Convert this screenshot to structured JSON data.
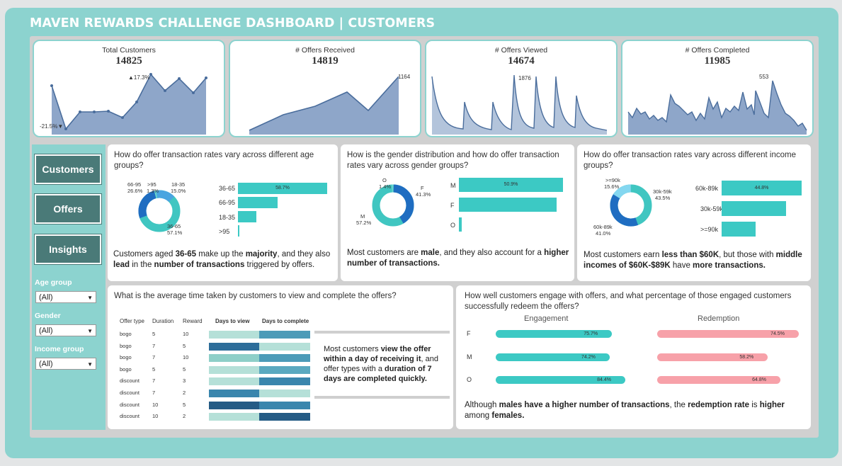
{
  "title": "MAVEN REWARDS CHALLENGE DASHBOARD | CUSTOMERS",
  "kpis": [
    {
      "title": "Total Customers",
      "value": "14825",
      "high_label": "▲17.3%",
      "low_label": "-21.5%▼"
    },
    {
      "title": "# Offers Received",
      "value": "14819",
      "peak_label": "1164"
    },
    {
      "title": "# Offers Viewed",
      "value": "14674",
      "peak_label": "1876"
    },
    {
      "title": "# Offers Completed",
      "value": "11985",
      "peak_label": "553"
    }
  ],
  "nav": {
    "customers": "Customers",
    "offers": "Offers",
    "insights": "Insights"
  },
  "filters": [
    {
      "label": "Age group",
      "value": "(All)"
    },
    {
      "label": "Gender",
      "value": "(All)"
    },
    {
      "label": "Income group",
      "value": "(All)"
    }
  ],
  "age": {
    "question": "How do offer transaction rates vary across different age groups?",
    "donut_labels": [
      {
        "name": "66-95",
        "pct": "26.6%"
      },
      {
        "name": ">95",
        "pct": "1.3%"
      },
      {
        "name": "18-35",
        "pct": "15.0%"
      },
      {
        "name": "36-65",
        "pct": "57.1%"
      }
    ],
    "bars": [
      {
        "label": "36-65",
        "value": 58.7,
        "text": "58.7%"
      },
      {
        "label": "66-95",
        "value": 26,
        "text": ""
      },
      {
        "label": "18-35",
        "value": 12,
        "text": ""
      },
      {
        "label": ">95",
        "value": 1,
        "text": ""
      }
    ],
    "insight": {
      "a": "Customers aged ",
      "b": "36-65",
      "c": " make up the ",
      "d": "majority",
      "e": ", and they also ",
      "f": "lead",
      "g": " in the ",
      "h": "number of transactions",
      "i": " triggered by offers."
    }
  },
  "gender": {
    "question": "How is the gender distribution and how do offer transaction rates vary across gender groups?",
    "donut_labels": [
      {
        "name": "O",
        "pct": "1.4%"
      },
      {
        "name": "F",
        "pct": "41.3%"
      },
      {
        "name": "M",
        "pct": "57.2%"
      }
    ],
    "bars": [
      {
        "label": "M",
        "value": 50.9,
        "text": "50.9%"
      },
      {
        "label": "F",
        "value": 47.8,
        "text": ""
      },
      {
        "label": "O",
        "value": 1.3,
        "text": ""
      }
    ],
    "insight": {
      "a": "Most customers are ",
      "b": "male",
      "c": ", and they also account for a ",
      "d": "higher number of transactions."
    }
  },
  "income": {
    "question": "How do offer transaction rates vary across different income groups?",
    "donut_labels": [
      {
        "name": ">=90k",
        "pct": "15.6%"
      },
      {
        "name": "30k-59k",
        "pct": "43.5%"
      },
      {
        "name": "60k-89k",
        "pct": "41.0%"
      }
    ],
    "bars": [
      {
        "label": "60k-89k",
        "value": 44.8,
        "text": "44.8%"
      },
      {
        "label": "30k-59k",
        "value": 36,
        "text": ""
      },
      {
        "label": ">=90k",
        "value": 19,
        "text": ""
      }
    ],
    "insight": {
      "a": "Most customers earn ",
      "b": "less than $60K",
      "c": ", but those with ",
      "d": "middle incomes of $60K-$89K",
      "e": " have ",
      "f": "more transactions."
    }
  },
  "timing": {
    "question": "What is the average time taken by customers to view and complete the offers?",
    "headers": {
      "type": "Offer type",
      "duration": "Duration",
      "reward": "Reward",
      "view": "Days to view",
      "complete": "Days to complete"
    },
    "rows": [
      {
        "type": "bogo",
        "duration": "5",
        "reward": "10",
        "view_color": "#b5e0d8",
        "complete_color": "#4c9bb8"
      },
      {
        "type": "bogo",
        "duration": "7",
        "reward": "5",
        "view_color": "#2d6d9a",
        "complete_color": "#b5e0d8"
      },
      {
        "type": "bogo",
        "duration": "7",
        "reward": "10",
        "view_color": "#8ecfc8",
        "complete_color": "#4c9bb8"
      },
      {
        "type": "bogo",
        "duration": "5",
        "reward": "5",
        "view_color": "#b5e0d8",
        "complete_color": "#5aa9c0"
      },
      {
        "type": "discount",
        "duration": "7",
        "reward": "3",
        "view_color": "#b5e0d8",
        "complete_color": "#3a86ad"
      },
      {
        "type": "discount",
        "duration": "7",
        "reward": "2",
        "view_color": "#3a86ad",
        "complete_color": "#b5e0d8"
      },
      {
        "type": "discount",
        "duration": "10",
        "reward": "5",
        "view_color": "#245b85",
        "complete_color": "#3a86ad"
      },
      {
        "type": "discount",
        "duration": "10",
        "reward": "2",
        "view_color": "#b5e0d8",
        "complete_color": "#245b85"
      }
    ],
    "insight": {
      "a": "Most customers ",
      "b": "view the offer within a day of receiving it",
      "c": ", and offer types with a ",
      "d": "duration of 7 days are completed quickly."
    }
  },
  "engagement": {
    "question": "How well customers engage with offers, and what percentage of those engaged customers successfully redeem the offers?",
    "engagement_header": "Engagement",
    "redemption_header": "Redemption",
    "rows": [
      {
        "label": "F",
        "engagement": 75.7,
        "engagement_text": "75.7%",
        "redemption": 74.5,
        "redemption_text": "74.5%"
      },
      {
        "label": "M",
        "engagement": 74.2,
        "engagement_text": "74.2%",
        "redemption": 58.2,
        "redemption_text": "58.2%"
      },
      {
        "label": "O",
        "engagement": 84.4,
        "engagement_text": "84.4%",
        "redemption": 64.8,
        "redemption_text": "64.8%"
      }
    ],
    "insight": {
      "a": "Although ",
      "b": "males have a higher number of transactions",
      "c": ", the ",
      "d": "redemption rate",
      "e": " is ",
      "f": "higher",
      "g": " among ",
      "h": "females."
    }
  },
  "colors": {
    "teal": "#8cd3cf",
    "bar": "#3cc9c4",
    "area": "#8ea6c9",
    "line": "#4a6d9c",
    "donut_dark": "#1f6dc1",
    "donut_teal": "#40c6c1",
    "pink": "#f7a1a9",
    "nav": "#4a7a78"
  }
}
